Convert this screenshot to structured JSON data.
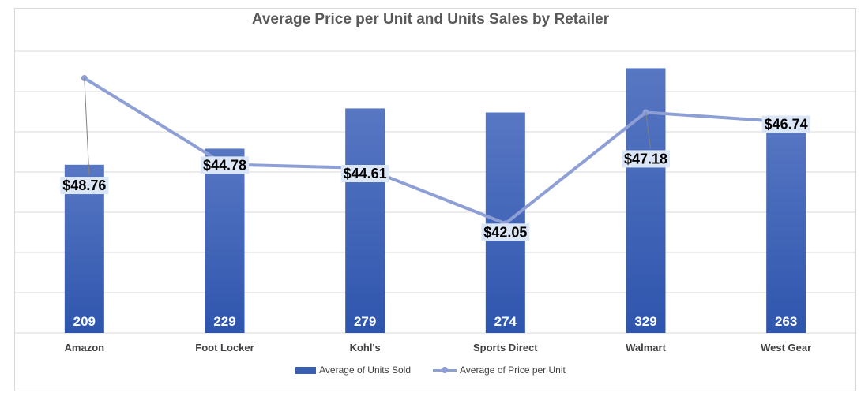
{
  "chart_data": {
    "type": "bar+line",
    "title": "Average Price per Unit and Units Sales by Retailer",
    "categories": [
      "Amazon",
      "Foot Locker",
      "Kohl's",
      "Sports Direct",
      "Walmart",
      "West Gear"
    ],
    "series": [
      {
        "name": "Average of Units Sold",
        "type": "bar",
        "axis": "primary",
        "values": [
          209,
          229,
          279,
          274,
          329,
          263
        ],
        "labels": [
          "209",
          "229",
          "279",
          "274",
          "329",
          "263"
        ]
      },
      {
        "name": "Average of Price per Unit",
        "type": "line",
        "axis": "secondary",
        "values": [
          48.76,
          44.78,
          44.61,
          42.05,
          47.18,
          46.74
        ],
        "labels": [
          "$48.76",
          "$44.78",
          "$44.61",
          "$42.05",
          "$47.18",
          "$46.74"
        ]
      }
    ],
    "primary_axis": {
      "min": 0,
      "max": 350,
      "gridlines": true,
      "tick_labels_visible": false
    },
    "secondary_axis": {
      "min": 37,
      "max": 50,
      "tick_labels_visible": false
    },
    "legend": "bottom",
    "colors": {
      "bar": "#3a5fb0",
      "bar_top": "#5877c3",
      "line": "#8e9fd6",
      "grid": "#d9d9d9",
      "label_box": "#dbe6f7"
    }
  }
}
